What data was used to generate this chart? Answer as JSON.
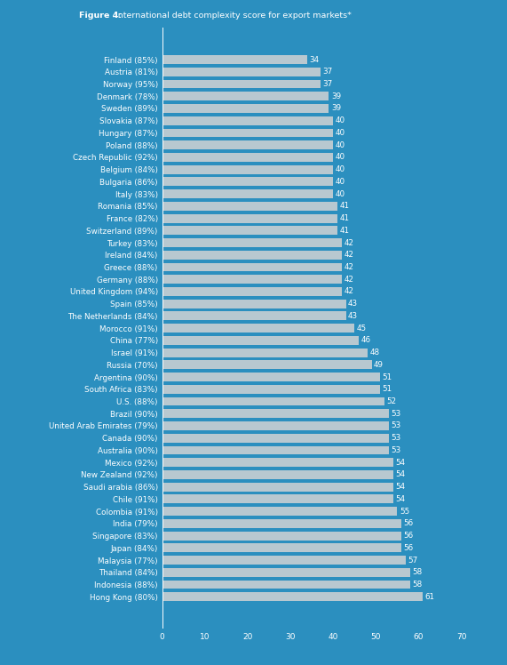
{
  "title_bold": "Figure 4:",
  "title_regular": " International debt complexity score for export markets*",
  "background_color": "#2B8FBF",
  "bar_color": "#B8C8D0",
  "text_color": "#FFFFFF",
  "categories": [
    "Finland (85%)",
    "Austria (81%)",
    "Norway (95%)",
    "Denmark (78%)",
    "Sweden (89%)",
    "Slovakia (87%)",
    "Hungary (87%)",
    "Poland (88%)",
    "Czech Republic (92%)",
    "Belgium (84%)",
    "Bulgaria (86%)",
    "Italy (83%)",
    "Romania (85%)",
    "France (82%)",
    "Switzerland (89%)",
    "Turkey (83%)",
    "Ireland (84%)",
    "Greece (88%)",
    "Germany (88%)",
    "United Kingdom (94%)",
    "Spain (85%)",
    "The Netherlands (84%)",
    "Morocco (91%)",
    "China (77%)",
    "Israel (91%)",
    "Russia (70%)",
    "Argentina (90%)",
    "South Africa (83%)",
    "U.S. (88%)",
    "Brazil (90%)",
    "United Arab Emirates (79%)",
    "Canada (90%)",
    "Australia (90%)",
    "Mexico (92%)",
    "New Zealand (92%)",
    "Saudi arabia (86%)",
    "Chile (91%)",
    "Colombia (91%)",
    "India (79%)",
    "Singapore (83%)",
    "Japan (84%)",
    "Malaysia (77%)",
    "Thailand (84%)",
    "Indonesia (88%)",
    "Hong Kong (80%)"
  ],
  "values": [
    34,
    37,
    37,
    39,
    39,
    40,
    40,
    40,
    40,
    40,
    40,
    40,
    41,
    41,
    41,
    42,
    42,
    42,
    42,
    42,
    43,
    43,
    45,
    46,
    48,
    49,
    51,
    51,
    52,
    53,
    53,
    53,
    53,
    54,
    54,
    54,
    54,
    55,
    56,
    56,
    56,
    57,
    58,
    58,
    61
  ],
  "xlim": [
    0,
    70
  ],
  "xticks": [
    0,
    10,
    20,
    30,
    40,
    50,
    60,
    70
  ]
}
